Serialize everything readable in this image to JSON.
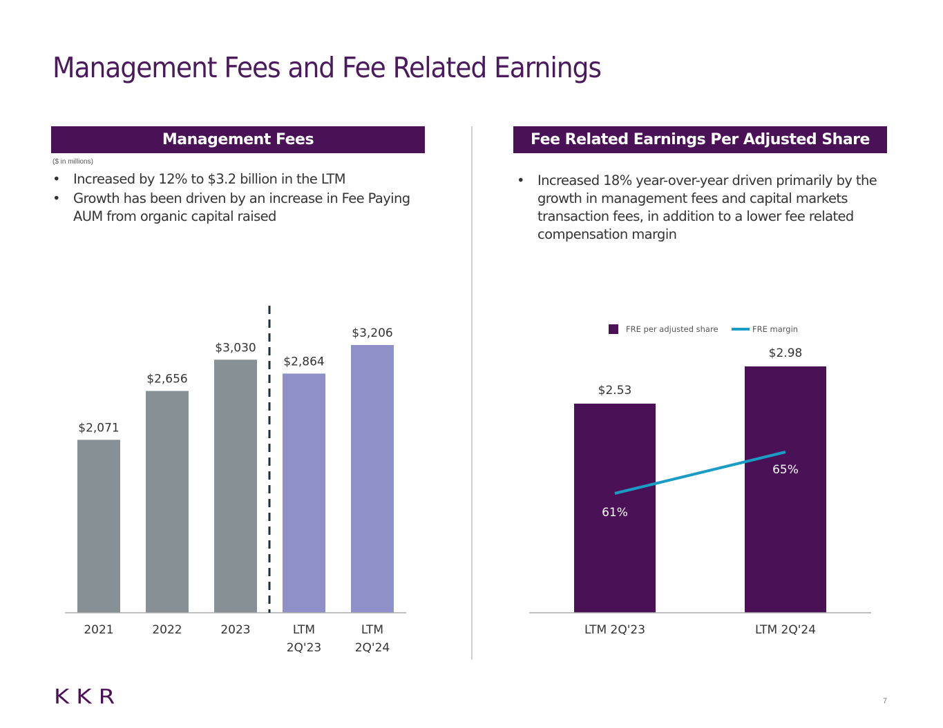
{
  "page": {
    "title": "Management Fees and Fee Related Earnings",
    "logo": "KKR",
    "page_number": "7",
    "brand_color": "#4a1157"
  },
  "left_panel": {
    "header": "Management Fees",
    "note": "($ in millions)",
    "bullets": [
      "Increased by 12% to $3.2 billion in the LTM",
      "Growth has been driven by an increase in Fee Paying AUM from organic capital raised"
    ]
  },
  "right_panel": {
    "header": "Fee Related Earnings Per Adjusted Share",
    "bullets": [
      "Increased 18% year-over-year driven primarily by the growth in management fees and capital markets transaction fees, in addition to a lower fee related compensation margin"
    ]
  },
  "chart_data": [
    {
      "type": "bar",
      "title": "Management Fees",
      "xlabel": "",
      "ylabel": "",
      "categories": [
        [
          "2021"
        ],
        [
          "2022"
        ],
        [
          "2023"
        ],
        [
          "LTM",
          "2Q'23"
        ],
        [
          "LTM",
          "2Q'24"
        ]
      ],
      "values": [
        2071,
        2656,
        3030,
        2864,
        3206
      ],
      "labels": [
        "$2,071",
        "$2,656",
        "$3,030",
        "$2,864",
        "$3,206"
      ],
      "colors": [
        "#879095",
        "#879095",
        "#879095",
        "#8f90c8",
        "#8f90c8"
      ],
      "ylim": [
        0,
        3350
      ],
      "grid": false,
      "separator": "dashed line between 2023 and LTM 2Q'23"
    },
    {
      "type": "bar",
      "title": "Fee Related Earnings Per Adjusted Share",
      "categories": [
        "LTM 2Q'23",
        "LTM 2Q'24"
      ],
      "legend": [
        {
          "name": "FRE per adjusted share",
          "kind": "bar",
          "color": "#4a1157"
        },
        {
          "name": "FRE margin",
          "kind": "line",
          "color": "#1a9cc4"
        }
      ],
      "legend_position": "top-center",
      "series": [
        {
          "name": "FRE per adjusted share",
          "type": "bar",
          "values": [
            2.53,
            2.98
          ],
          "labels": [
            "$2.53",
            "$2.98"
          ],
          "color": "#4a1157"
        },
        {
          "name": "FRE margin",
          "type": "line",
          "values": [
            61,
            65
          ],
          "labels": [
            "61%",
            "65%"
          ],
          "color": "#1a9cc4"
        }
      ],
      "ylim": [
        0,
        3.2
      ],
      "grid": false
    }
  ]
}
